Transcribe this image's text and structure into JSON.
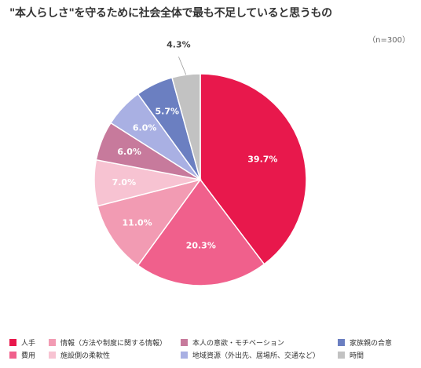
{
  "chart_data": {
    "type": "pie",
    "title": "\"本人らしさ\"を守るために社会全体で最も不足していると思うもの",
    "note": "（n=300）",
    "slices": [
      {
        "label": "人手",
        "value": 39.7,
        "value_label": "39.7%",
        "color": "#e8184c"
      },
      {
        "label": "費用",
        "value": 20.3,
        "value_label": "20.3%",
        "color": "#f0608c"
      },
      {
        "label": "情報（方法や制度に関する情報）",
        "value": 11.0,
        "value_label": "11.0%",
        "color": "#f29bb3"
      },
      {
        "label": "施設側の柔軟性",
        "value": 7.0,
        "value_label": "7.0%",
        "color": "#f7c3d2"
      },
      {
        "label": "本人の意欲・モチベーション",
        "value": 6.0,
        "value_label": "6.0%",
        "color": "#c77a9c"
      },
      {
        "label": "地域資源（外出先、居場所、交通など）",
        "value": 6.0,
        "value_label": "6.0%",
        "color": "#a9b0e3"
      },
      {
        "label": "家族親の合意",
        "value": 5.7,
        "value_label": "5.7%",
        "color": "#6b7fc1"
      },
      {
        "label": "時間",
        "value": 4.3,
        "value_label": "4.3%",
        "color": "#c2c2c2"
      }
    ],
    "legend_order": [
      0,
      2,
      4,
      6,
      1,
      3,
      5,
      7
    ]
  }
}
